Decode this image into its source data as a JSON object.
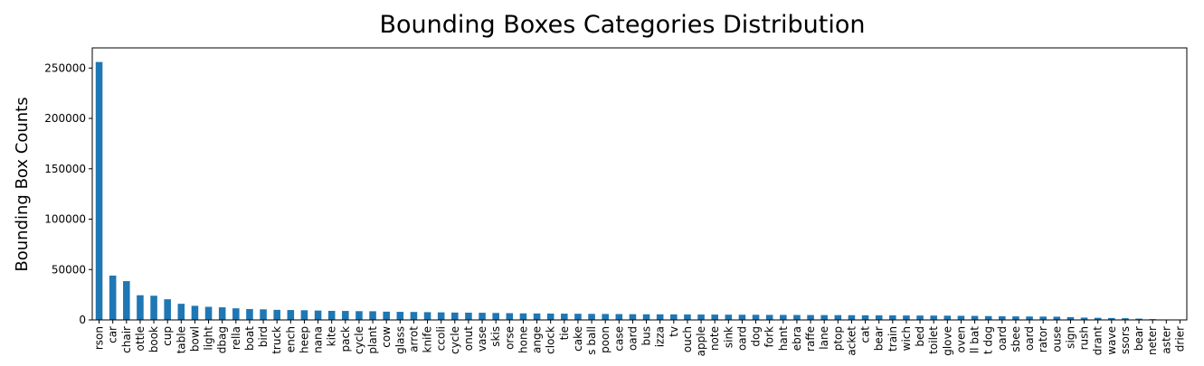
{
  "chart_data": {
    "type": "bar",
    "title": "Bounding Boxes Categories Distribution",
    "xlabel": "",
    "ylabel": "Bounding Box Counts",
    "ylim": [
      0,
      270000
    ],
    "yticks": [
      0,
      50000,
      100000,
      150000,
      200000,
      250000
    ],
    "ytick_labels": [
      "0",
      "50000",
      "100000",
      "150000",
      "200000",
      "250000"
    ],
    "grid": false,
    "legend": "none",
    "bar_color": "#1f77b4",
    "categories": [
      "rson",
      "car",
      "chair",
      "ottle",
      "book",
      "cup",
      "table",
      "bowl",
      "light",
      "dbag",
      "rella",
      "boat",
      "bird",
      "truck",
      "ench",
      "heep",
      "nana",
      "kite",
      "pack",
      "cycle",
      "plant",
      "cow",
      "glass",
      "arrot",
      "knife",
      "ccoli",
      "cycle",
      "onut",
      "vase",
      "skis",
      "orse",
      "hone",
      "ange",
      "clock",
      "tie",
      "cake",
      "s ball",
      "poon",
      "case",
      "oard",
      "bus",
      "izza",
      "tv",
      "ouch",
      "apple",
      "note",
      "sink",
      "oard",
      "dog",
      "fork",
      "hant",
      "ebra",
      "raffe",
      "lane",
      "ptop",
      "acket",
      "cat",
      "bear",
      "train",
      "wich",
      "bed",
      "toilet",
      "glove",
      "oven",
      "ll bat",
      "t dog",
      "oard",
      "sbee",
      "oard",
      "rator",
      "ouse",
      "sign",
      "rush",
      "drant",
      "wave",
      "ssors",
      "bear",
      "neter",
      "aster",
      "drier"
    ],
    "values": [
      256000,
      44000,
      38500,
      24500,
      24000,
      20500,
      16000,
      14000,
      13000,
      12500,
      11500,
      10800,
      10500,
      10000,
      9800,
      9600,
      9300,
      9000,
      8900,
      8700,
      8600,
      8200,
      8000,
      7900,
      7700,
      7500,
      7300,
      7200,
      7100,
      6900,
      6700,
      6500,
      6400,
      6300,
      6200,
      6100,
      6000,
      5900,
      5800,
      5700,
      5600,
      5550,
      5500,
      5400,
      5350,
      5300,
      5200,
      5150,
      5100,
      5000,
      4950,
      4900,
      4850,
      4800,
      4750,
      4700,
      4600,
      4550,
      4500,
      4400,
      4350,
      4300,
      4200,
      4100,
      4000,
      3800,
      3600,
      3500,
      3400,
      3300,
      3200,
      2800,
      2300,
      2100,
      1900,
      1700,
      1300,
      800,
      300,
      100
    ]
  }
}
